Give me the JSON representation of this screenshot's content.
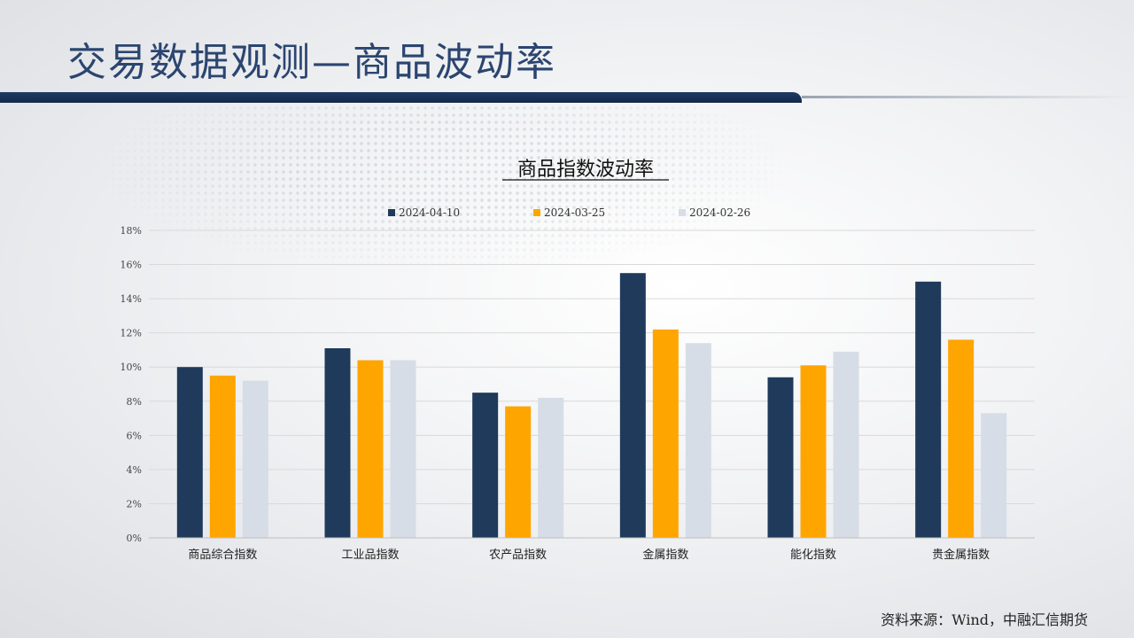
{
  "page": {
    "title": "交易数据观测—商品波动率",
    "source": "资料来源：Wind，中融汇信期货"
  },
  "colors": {
    "title": "#2b4570",
    "title_rule": "#1f3a63",
    "series": [
      "#1f3a5a",
      "#ffa500",
      "#d6dde6"
    ]
  },
  "chart_data": {
    "type": "bar",
    "title": "商品指数波动率",
    "categories": [
      "商品综合指数",
      "工业品指数",
      "农产品指数",
      "金属指数",
      "能化指数",
      "贵金属指数"
    ],
    "series": [
      {
        "name": "2024-04-10",
        "values": [
          10.0,
          11.1,
          8.5,
          15.5,
          9.4,
          15.0
        ]
      },
      {
        "name": "2024-03-25",
        "values": [
          9.5,
          10.4,
          7.7,
          12.2,
          10.1,
          11.6
        ]
      },
      {
        "name": "2024-02-26",
        "values": [
          9.2,
          10.4,
          8.2,
          11.4,
          10.9,
          7.3
        ]
      }
    ],
    "ylim": [
      0,
      18
    ],
    "yticks": [
      "0%",
      "2%",
      "4%",
      "6%",
      "8%",
      "10%",
      "12%",
      "14%",
      "16%",
      "18%"
    ],
    "grid": true,
    "legend": "top"
  }
}
